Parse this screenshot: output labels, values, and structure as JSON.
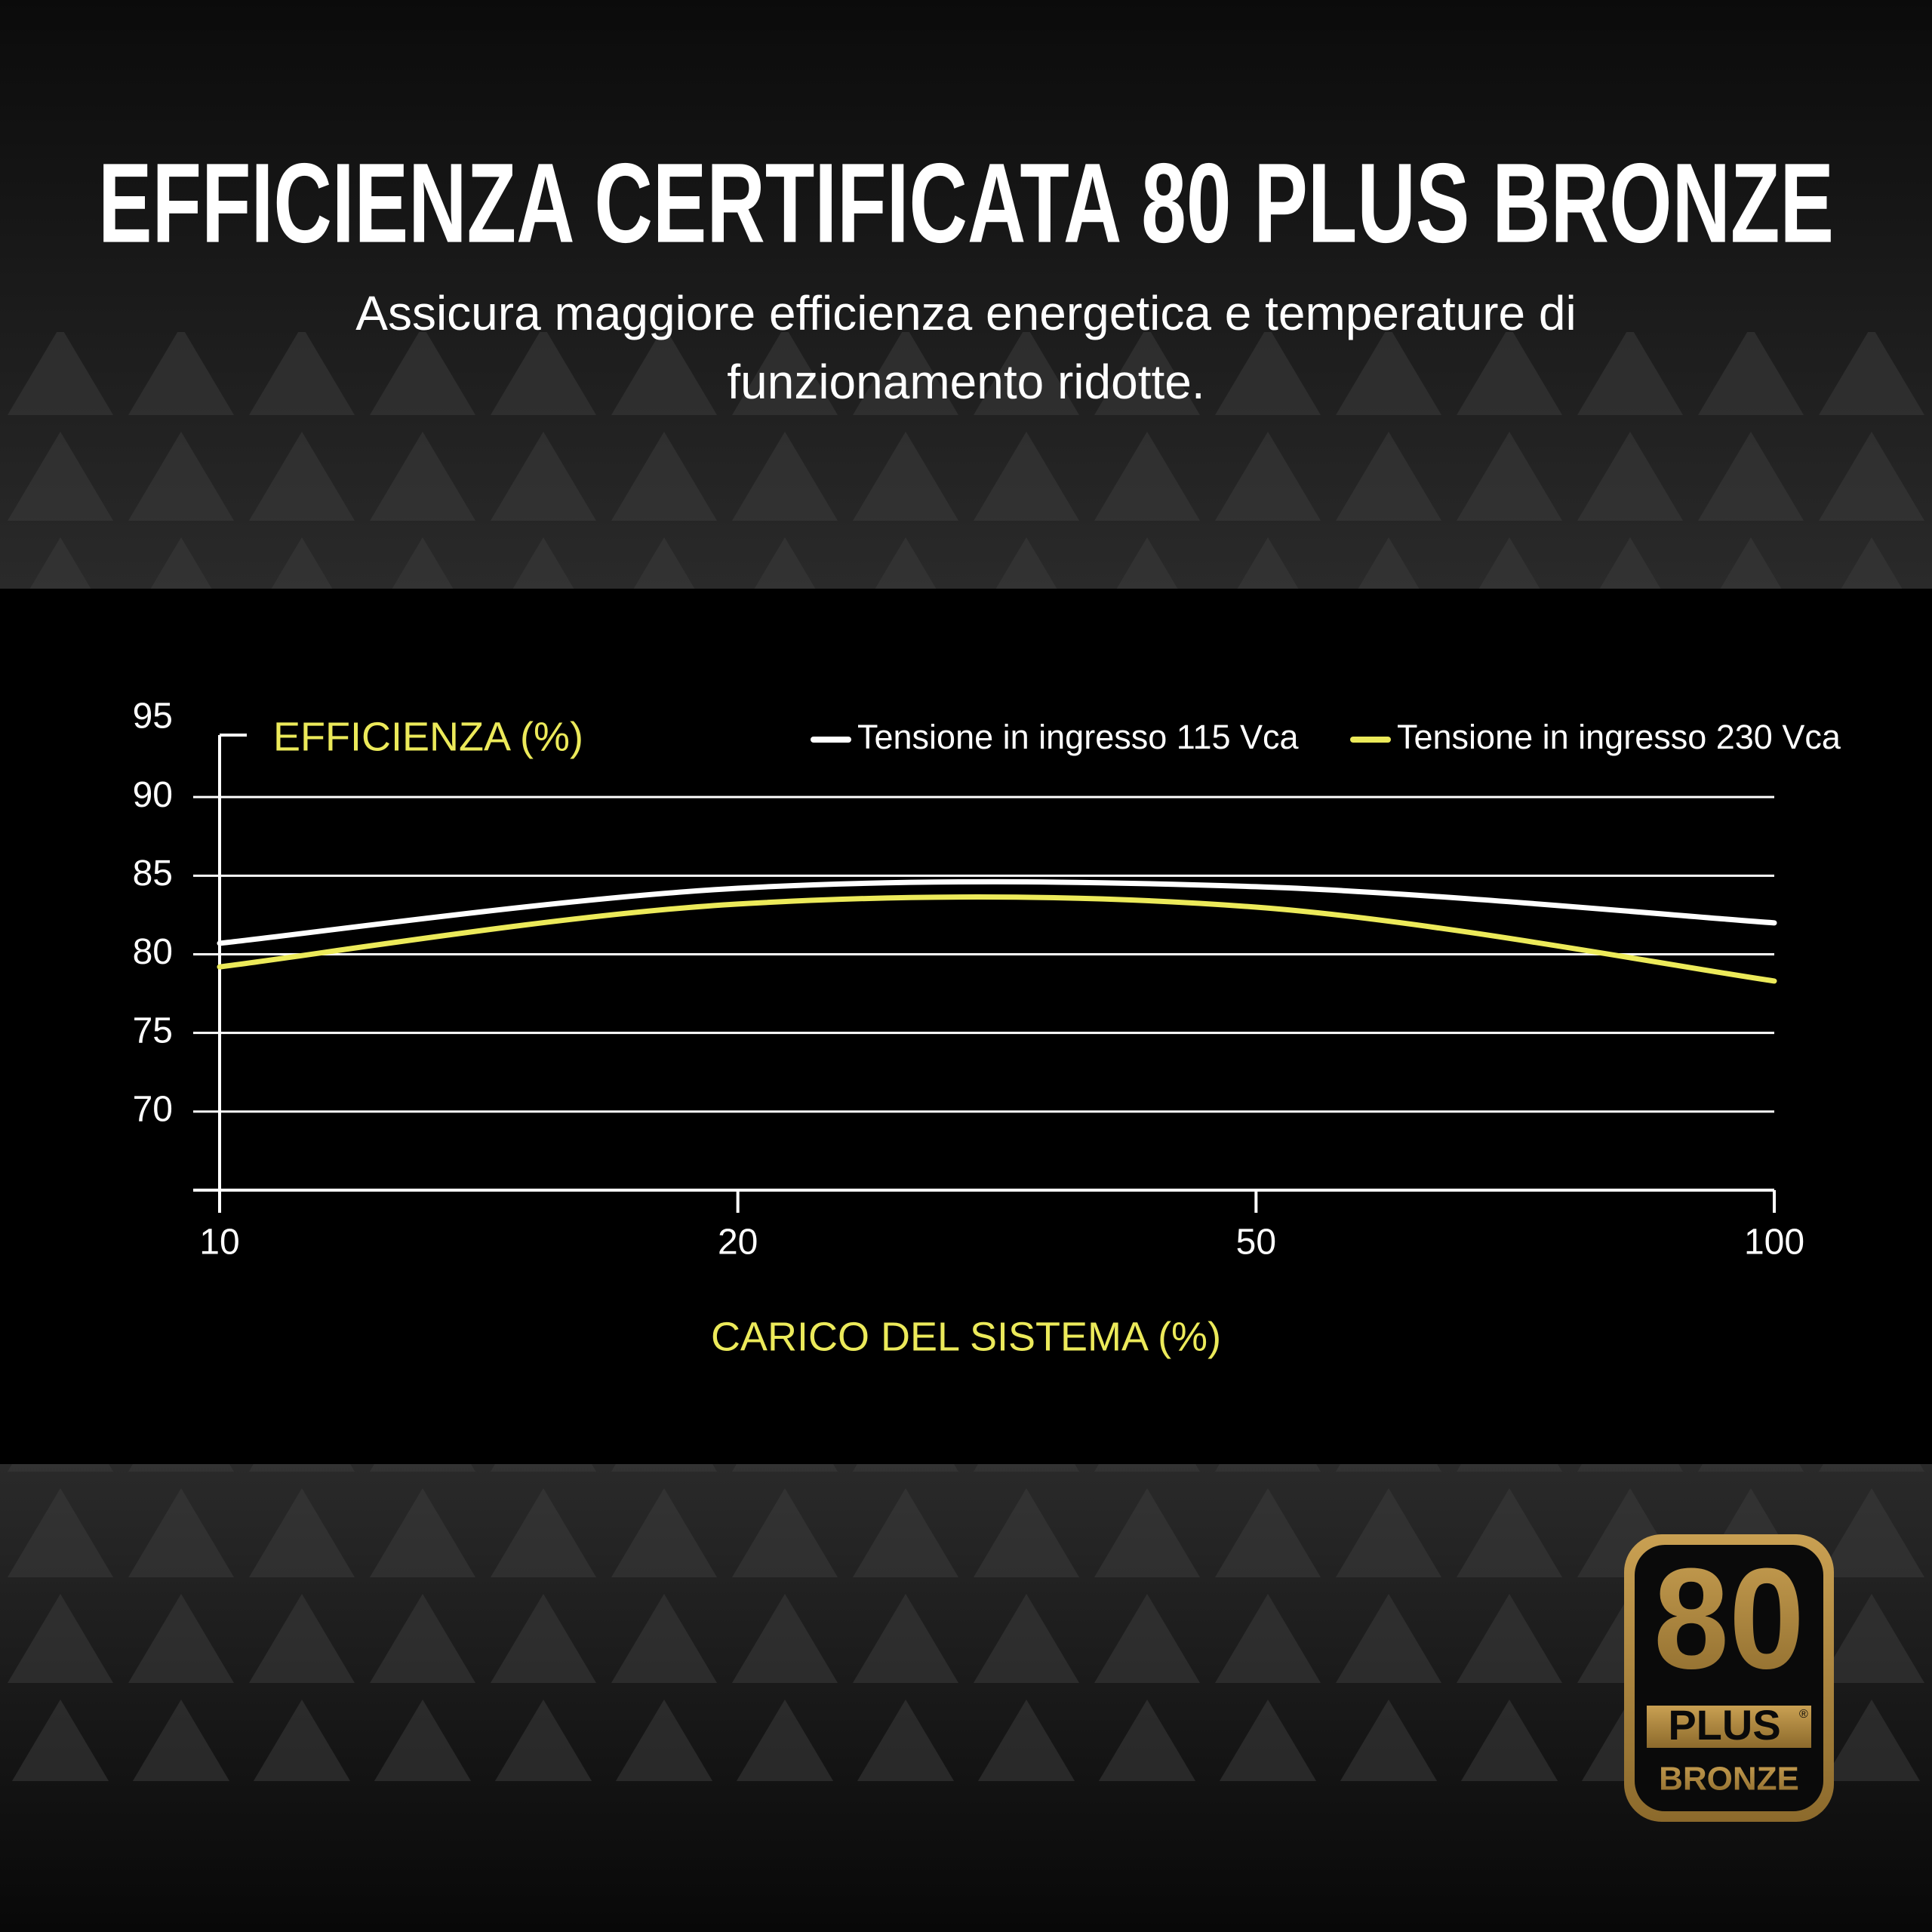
{
  "chart_data": {
    "type": "line",
    "title": "EFFICIENZA CERTIFICATA 80 PLUS BRONZE",
    "subtitle": [
      "Assicura maggiore efficienza energetica e temperature di",
      "funzionamento ridotte."
    ],
    "y_label": "EFFICIENZA (%)",
    "x_label": "CARICO DEL SISTEMA (%)",
    "categories": [
      "10",
      "20",
      "50",
      "100"
    ],
    "series": [
      {
        "name": "Tensione in ingresso 115 Vca",
        "color": "#ffffff",
        "values": [
          80.7,
          84.2,
          84.3,
          82.0
        ]
      },
      {
        "name": "Tensione in ingresso 230 Vca",
        "color": "#ecea5a",
        "values": [
          79.2,
          83.2,
          83.0,
          78.3
        ]
      }
    ],
    "ylim": [
      65,
      95
    ],
    "yticks": [
      70,
      75,
      80,
      85,
      90,
      95
    ],
    "grid": true,
    "legend": "top-right"
  },
  "badge": {
    "number": "80",
    "plus": "PLUS",
    "mark": "®",
    "grade": "BRONZE"
  }
}
